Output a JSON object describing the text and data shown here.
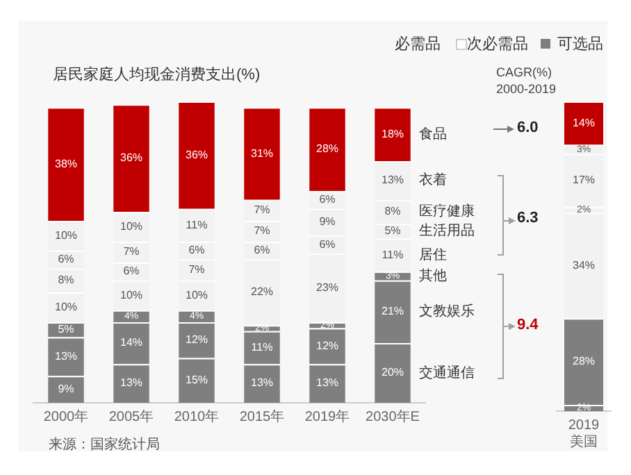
{
  "chart_data": [
    {
      "type": "bar",
      "title": "居民家庭人均现金消费支出(%)",
      "stacked": true,
      "categories": [
        "2000年",
        "2005年",
        "2010年",
        "2015年",
        "2019年",
        "2030年E"
      ],
      "series": [
        {
          "name": "交通通信",
          "color": "#7f7f7f",
          "values": [
            9,
            13,
            15,
            13,
            13,
            20
          ],
          "value_labels": [
            "9%",
            "13%",
            "15%",
            "13%",
            "13%",
            "20%"
          ]
        },
        {
          "name": "文教娱乐",
          "color": "#7f7f7f",
          "values": [
            13,
            14,
            12,
            11,
            12,
            21
          ],
          "value_labels": [
            "13%",
            "14%",
            "12%",
            "11%",
            "12%",
            "21%"
          ]
        },
        {
          "name": "其他",
          "color": "#7f7f7f",
          "values": [
            5,
            4,
            4,
            2,
            2,
            3
          ],
          "value_labels": [
            "5%",
            "4%",
            "4%",
            "2%",
            "2%",
            "3%"
          ]
        },
        {
          "name": "居住",
          "color": "#f2f2f2",
          "values": [
            10,
            10,
            10,
            22,
            23,
            11
          ],
          "value_labels": [
            "10%",
            "10%",
            "10%",
            "22%",
            "23%",
            "11%"
          ]
        },
        {
          "name": "生活用品",
          "color": "#f2f2f2",
          "values": [
            8,
            6,
            7,
            6,
            6,
            5
          ],
          "value_labels": [
            "8%",
            "6%",
            "7%",
            "6%",
            "6%",
            "5%"
          ]
        },
        {
          "name": "医疗健康",
          "color": "#f2f2f2",
          "values": [
            6,
            7,
            6,
            7,
            9,
            8
          ],
          "value_labels": [
            "6%",
            "7%",
            "6%",
            "7%",
            "9%",
            "8%"
          ]
        },
        {
          "name": "衣着",
          "color": "#f2f2f2",
          "values": [
            10,
            10,
            11,
            7,
            6,
            13
          ],
          "value_labels": [
            "10%",
            "10%",
            "11%",
            "7%",
            "6%",
            "13%"
          ]
        },
        {
          "name": "食品",
          "color": "#c00000",
          "values": [
            38,
            36,
            36,
            31,
            28,
            18
          ],
          "value_labels": [
            "38%",
            "36%",
            "36%",
            "31%",
            "28%",
            "18%"
          ]
        }
      ],
      "annotations": [
        "必需品",
        "次必需品",
        "可选品",
        "CAGR(%)",
        "2000-2019",
        "6.0",
        "6.3",
        "9.4",
        "来源：国家统计局"
      ]
    },
    {
      "type": "bar",
      "stacked": true,
      "categories": [
        "2019 美国"
      ],
      "series": [
        {
          "color": "#7f7f7f",
          "values": [
            2
          ],
          "value_labels": [
            "2%"
          ]
        },
        {
          "color": "#7f7f7f",
          "values": [
            28
          ],
          "value_labels": [
            "28%"
          ]
        },
        {
          "color": "#7f7f7f",
          "values": [
            null
          ],
          "value_labels": [
            null
          ]
        },
        {
          "color": "#f2f2f2",
          "values": [
            34
          ],
          "value_labels": [
            "34%"
          ]
        },
        {
          "color": "#f2f2f2",
          "values": [
            2
          ],
          "value_labels": [
            "2%"
          ]
        },
        {
          "color": "#f2f2f2",
          "values": [
            17
          ],
          "value_labels": [
            "17%"
          ]
        },
        {
          "color": "#f2f2f2",
          "values": [
            3
          ],
          "value_labels": [
            "3%"
          ]
        },
        {
          "color": "#c00000",
          "values": [
            14
          ],
          "value_labels": [
            "14%"
          ]
        }
      ]
    }
  ]
}
